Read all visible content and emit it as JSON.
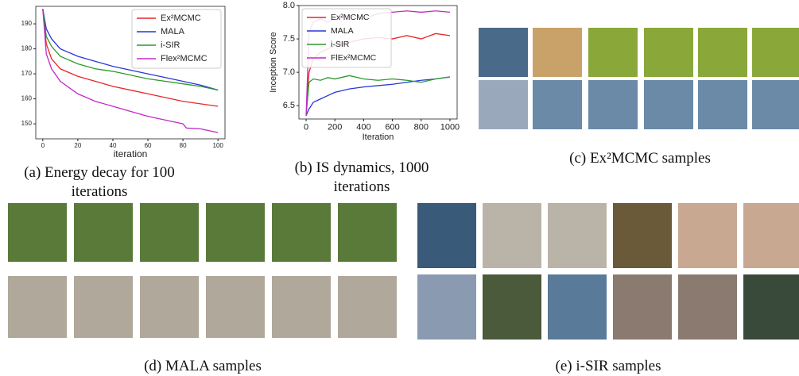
{
  "chart_data": [
    {
      "type": "line",
      "xlabel": "iteration",
      "legend": "upper right",
      "grid": false,
      "x": [
        0,
        2,
        5,
        10,
        20,
        30,
        40,
        50,
        60,
        70,
        80,
        82,
        90,
        100
      ],
      "xlim": [
        -4,
        104
      ],
      "xticks": [
        0,
        20,
        40,
        60,
        80,
        100
      ],
      "ylim": [
        144,
        197
      ],
      "yticks": [
        150,
        160,
        170,
        180,
        190
      ],
      "series": [
        {
          "name": "Ex²MCMC",
          "color": "#e8262a",
          "values": [
            196,
            182,
            176,
            172,
            169,
            167,
            165,
            163.5,
            162,
            160.5,
            159,
            158.8,
            158,
            157
          ]
        },
        {
          "name": "MALA",
          "color": "#2a36d8",
          "values": [
            196,
            188,
            184,
            180,
            177,
            175,
            173,
            171.5,
            170,
            168.5,
            167,
            166.7,
            165.5,
            163.5
          ]
        },
        {
          "name": "i-SIR",
          "color": "#2a9a2a",
          "values": [
            196,
            185,
            181,
            177,
            174,
            172,
            171,
            169.5,
            168,
            167,
            166,
            165.8,
            165,
            163.5
          ]
        },
        {
          "name": "Flex²MCMC",
          "color": "#c02ac8",
          "values": [
            196,
            178,
            172,
            167,
            162,
            159,
            157,
            155,
            153,
            151.5,
            150,
            148.3,
            148,
            146.5
          ]
        }
      ]
    },
    {
      "type": "line",
      "xlabel": "Iteration",
      "ylabel": "Inception Score",
      "legend": "upper left",
      "grid": false,
      "x": [
        0,
        20,
        50,
        100,
        150,
        200,
        300,
        400,
        500,
        600,
        700,
        800,
        900,
        1000
      ],
      "xlim": [
        -50,
        1050
      ],
      "xticks": [
        0,
        200,
        400,
        600,
        800,
        1000
      ],
      "ylim": [
        6.3,
        8.0
      ],
      "yticks": [
        6.5,
        {
          "value": 7,
          "label": "7.0"
        },
        7.5,
        {
          "value": 8,
          "label": "8.0"
        }
      ],
      "series": [
        {
          "name": "Ex²MCMC",
          "color": "#e8262a",
          "values": [
            6.35,
            7.0,
            7.2,
            7.3,
            7.35,
            7.4,
            7.45,
            7.5,
            7.52,
            7.5,
            7.55,
            7.5,
            7.58,
            7.55
          ]
        },
        {
          "name": "MALA",
          "color": "#2a36d8",
          "values": [
            6.35,
            6.45,
            6.55,
            6.6,
            6.65,
            6.7,
            6.75,
            6.78,
            6.8,
            6.82,
            6.85,
            6.88,
            6.9,
            6.93
          ]
        },
        {
          "name": "i-SIR",
          "color": "#2a9a2a",
          "values": [
            6.35,
            6.85,
            6.9,
            6.88,
            6.92,
            6.9,
            6.95,
            6.9,
            6.88,
            6.9,
            6.88,
            6.85,
            6.9,
            6.93
          ]
        },
        {
          "name": "FlEx²MCMC",
          "color": "#c02ac8",
          "values": [
            6.35,
            7.6,
            7.75,
            7.8,
            7.75,
            7.82,
            7.85,
            7.8,
            7.88,
            7.9,
            7.92,
            7.9,
            7.92,
            7.9
          ]
        }
      ]
    }
  ],
  "captions": [
    "(a) Energy decay for 100 iterations",
    "(b) IS dynamics, 1000 iterations",
    "(c) Ex²MCMC samples",
    "(d) MALA samples",
    "(e) i-SIR samples"
  ]
}
